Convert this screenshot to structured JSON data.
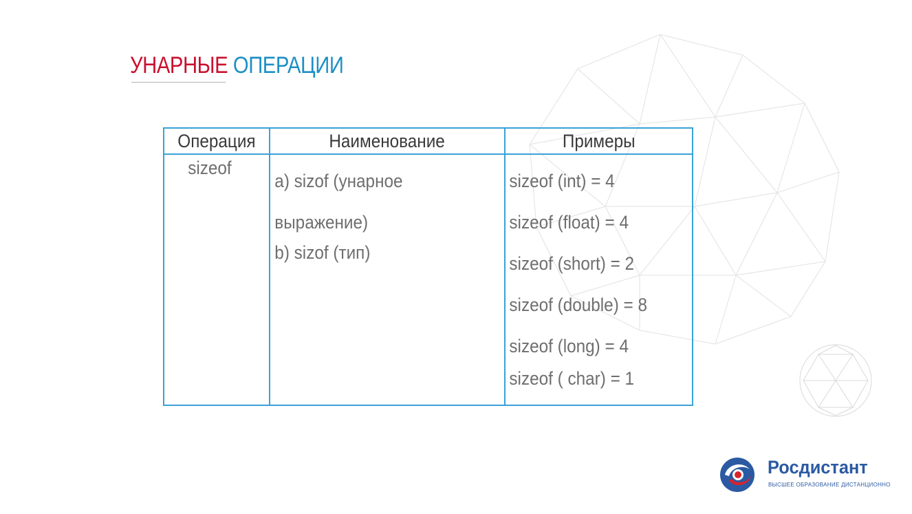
{
  "title": {
    "word1": "УНАРНЫЕ",
    "word2": "ОПЕРАЦИИ"
  },
  "table": {
    "headers": [
      "Операция",
      "Наименование",
      "Примеры"
    ],
    "operation": "sizeof",
    "names": [
      "a) sizof (унарное",
      "выражение)",
      "b) sizof (тип)"
    ],
    "examples": [
      "sizeof (int) = 4",
      "sizeof (float) = 4",
      "sizeof (short) = 2",
      "sizeof (double) = 8",
      "sizeof (long) = 4",
      "sizeof ( char) = 1"
    ]
  },
  "logo": {
    "name": "Росдистант",
    "tagline": "ВЫСШЕЕ ОБРАЗОВАНИЕ ДИСТАНЦИОННО"
  },
  "colors": {
    "title_red": "#c8102e",
    "title_blue": "#1e8fc4",
    "table_border": "#3aa1d8",
    "logo_blue": "#2b5aa3"
  },
  "icons": [
    "geodesic-sphere-decoration-icon",
    "small-geodesic-sphere-icon",
    "rosdistant-logo-icon"
  ]
}
